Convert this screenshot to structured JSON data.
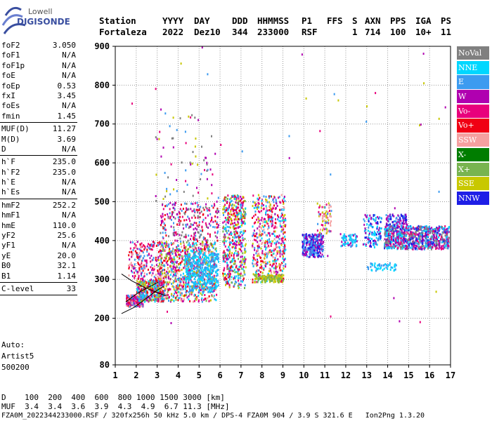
{
  "logo": {
    "line1": "Lowell",
    "line2": "DIGISONDE"
  },
  "header": {
    "labels": [
      "Station",
      "YYYY",
      "DAY",
      "DDD",
      "HHMMSS",
      "P1",
      "FFS",
      "S",
      "AXN",
      "PPS",
      "IGA",
      "PS"
    ],
    "values": [
      "Fortaleza",
      "2022",
      "Dez10",
      "344",
      "233000",
      "RSF",
      "",
      "1",
      "714",
      "100",
      "10+",
      "11"
    ]
  },
  "params": [
    {
      "name": "foF2",
      "value": "3.050"
    },
    {
      "name": "foF1",
      "value": "N/A"
    },
    {
      "name": "foF1p",
      "value": "N/A"
    },
    {
      "name": "foE",
      "value": "N/A"
    },
    {
      "name": "foEp",
      "value": "0.53"
    },
    {
      "name": "fxI",
      "value": "3.45"
    },
    {
      "name": "foEs",
      "value": "N/A"
    },
    {
      "name": "fmin",
      "value": "1.45"
    },
    {
      "sep": true
    },
    {
      "name": "MUF(D)",
      "value": "11.27"
    },
    {
      "name": "M(D)",
      "value": "3.69"
    },
    {
      "name": "D",
      "value": "N/A"
    },
    {
      "sep": true
    },
    {
      "name": "h`F",
      "value": "235.0"
    },
    {
      "name": "h`F2",
      "value": "235.0"
    },
    {
      "name": "h`E",
      "value": "N/A"
    },
    {
      "name": "h`Es",
      "value": "N/A"
    },
    {
      "sep": true
    },
    {
      "name": "hmF2",
      "value": "252.2"
    },
    {
      "name": "hmF1",
      "value": "N/A"
    },
    {
      "name": "hmE",
      "value": "110.0"
    },
    {
      "name": "yF2",
      "value": "25.6"
    },
    {
      "name": "yF1",
      "value": "N/A"
    },
    {
      "name": "yE",
      "value": "20.0"
    },
    {
      "name": "B0",
      "value": "32.1"
    },
    {
      "name": "B1",
      "value": "1.14"
    },
    {
      "sep": true
    },
    {
      "name": "C-level",
      "value": "33"
    },
    {
      "sep": true
    }
  ],
  "auto": [
    "Auto:",
    "Artist5",
    "500200"
  ],
  "legend": [
    {
      "label": "NoVal",
      "color": "#808080"
    },
    {
      "label": "NNE",
      "color": "#00d7ff"
    },
    {
      "label": "E",
      "color": "#3c9bf0"
    },
    {
      "label": "W",
      "color": "#b000b0"
    },
    {
      "label": "Vo-",
      "color": "#e8007c"
    },
    {
      "label": "Vo+",
      "color": "#f00014"
    },
    {
      "label": "SSW",
      "color": "#f5a0a0"
    },
    {
      "label": "X-",
      "color": "#007d00"
    },
    {
      "label": "X+",
      "color": "#78b450"
    },
    {
      "label": "SSE",
      "color": "#c8c800"
    },
    {
      "label": "NNW",
      "color": "#1e1ee6"
    }
  ],
  "footer": {
    "d_row": "D    100  200  400  600  800 1000 1500 3000 [km]",
    "muf_row": "MUF  3.4  3.4  3.6  3.9  4.3  4.9  6.7 11.3 [MHz]",
    "info": "FZA0M_2022344233000.RSF / 320fx256h 50 kHz 5.0 km / DPS-4 FZA0M 904 / 3.9 S 321.6 E   Ion2Png 1.3.20"
  },
  "chart_data": {
    "type": "scatter",
    "xlim": [
      1,
      17
    ],
    "ylim": [
      80,
      900
    ],
    "x_ticks": [
      1,
      2,
      3,
      4,
      5,
      6,
      7,
      8,
      9,
      10,
      11,
      12,
      13,
      14,
      15,
      16,
      17
    ],
    "y_ticks": [
      80,
      200,
      300,
      400,
      500,
      600,
      700,
      800,
      900
    ],
    "grid": true,
    "legend_position": "right",
    "clusters": [
      {
        "x": [
          1.5,
          2.3
        ],
        "y": [
          232,
          262
        ],
        "n": 220,
        "colors": [
          "#e8007c",
          "#f00014",
          "#b000b0",
          "#3c9bf0",
          "#f5a0a0"
        ]
      },
      {
        "x": [
          2.0,
          3.3
        ],
        "y": [
          245,
          300
        ],
        "n": 380,
        "colors": [
          "#e8007c",
          "#f00014",
          "#b000b0",
          "#3c9bf0",
          "#c8c800",
          "#78b450",
          "#00d7ff"
        ]
      },
      {
        "x": [
          1.6,
          3.2
        ],
        "y": [
          300,
          400
        ],
        "n": 220,
        "colors": [
          "#b000b0",
          "#e8007c",
          "#f00014",
          "#3c9bf0",
          "#f5a0a0"
        ]
      },
      {
        "x": [
          3.0,
          5.8
        ],
        "y": [
          245,
          400
        ],
        "n": 900,
        "colors": [
          "#b000b0",
          "#e8007c",
          "#3c9bf0",
          "#f00014",
          "#c8c800",
          "#00d7ff",
          "#f5a0a0",
          "#78b450"
        ]
      },
      {
        "x": [
          3.1,
          5.9
        ],
        "y": [
          400,
          500
        ],
        "n": 260,
        "colors": [
          "#b000b0",
          "#e8007c",
          "#3c9bf0",
          "#f00014",
          "#808080"
        ]
      },
      {
        "x": [
          4.3,
          5.9
        ],
        "y": [
          270,
          370
        ],
        "n": 360,
        "colors": [
          "#3c9bf0",
          "#00d7ff"
        ]
      },
      {
        "x": [
          6.1,
          7.2
        ],
        "y": [
          280,
          520
        ],
        "n": 520,
        "colors": [
          "#b000b0",
          "#3c9bf0",
          "#e8007c",
          "#00d7ff",
          "#c8c800",
          "#f00014",
          "#78b450"
        ]
      },
      {
        "x": [
          7.5,
          9.1
        ],
        "y": [
          295,
          520
        ],
        "n": 520,
        "colors": [
          "#b000b0",
          "#e8007c",
          "#3c9bf0",
          "#f00014",
          "#c8c800",
          "#00d7ff",
          "#f5a0a0"
        ]
      },
      {
        "x": [
          7.6,
          9.0
        ],
        "y": [
          295,
          315
        ],
        "n": 120,
        "colors": [
          "#c8c800",
          "#78b450"
        ]
      },
      {
        "x": [
          9.9,
          10.9
        ],
        "y": [
          360,
          420
        ],
        "n": 300,
        "colors": [
          "#1e1ee6",
          "#b000b0",
          "#3c9bf0"
        ]
      },
      {
        "x": [
          10.6,
          11.3
        ],
        "y": [
          420,
          500
        ],
        "n": 80,
        "colors": [
          "#f5a0a0",
          "#c8c800",
          "#3c9bf0",
          "#e8007c"
        ]
      },
      {
        "x": [
          11.7,
          12.5
        ],
        "y": [
          385,
          420
        ],
        "n": 70,
        "colors": [
          "#3c9bf0",
          "#00d7ff",
          "#b000b0"
        ]
      },
      {
        "x": [
          12.8,
          13.7
        ],
        "y": [
          385,
          470
        ],
        "n": 120,
        "colors": [
          "#3c9bf0",
          "#b000b0",
          "#1e1ee6",
          "#00d7ff"
        ]
      },
      {
        "x": [
          13.8,
          16.9
        ],
        "y": [
          380,
          440
        ],
        "n": 820,
        "colors": [
          "#b000b0",
          "#3c9bf0",
          "#00d7ff",
          "#1e1ee6",
          "#e8007c",
          "#808080"
        ]
      },
      {
        "x": [
          13.9,
          14.9
        ],
        "y": [
          440,
          470
        ],
        "n": 90,
        "colors": [
          "#1e1ee6",
          "#b000b0",
          "#3c9bf0"
        ]
      },
      {
        "x": [
          13.0,
          14.4
        ],
        "y": [
          325,
          345
        ],
        "n": 50,
        "colors": [
          "#00d7ff",
          "#3c9bf0"
        ]
      },
      {
        "x": [
          2.9,
          6.0
        ],
        "y": [
          500,
          740
        ],
        "n": 70,
        "colors": [
          "#3c9bf0",
          "#c8c800",
          "#e8007c",
          "#b000b0",
          "#808080"
        ]
      },
      {
        "x": [
          1.0,
          17.0
        ],
        "y": [
          180,
          900
        ],
        "n": 45,
        "colors": [
          "#3c9bf0",
          "#b000b0",
          "#c8c800",
          "#e8007c"
        ]
      }
    ],
    "profile_lines": [
      {
        "x": [
          1.3,
          1.9,
          2.4,
          3.0,
          3.3
        ],
        "y": [
          212,
          228,
          248,
          272,
          282
        ]
      },
      {
        "x": [
          1.3,
          1.8,
          2.3,
          2.9,
          3.4
        ],
        "y": [
          314,
          296,
          282,
          268,
          258
        ]
      },
      {
        "x": [
          1.5,
          2.0,
          2.5,
          3.05
        ],
        "y": [
          242,
          262,
          278,
          292
        ]
      }
    ]
  }
}
